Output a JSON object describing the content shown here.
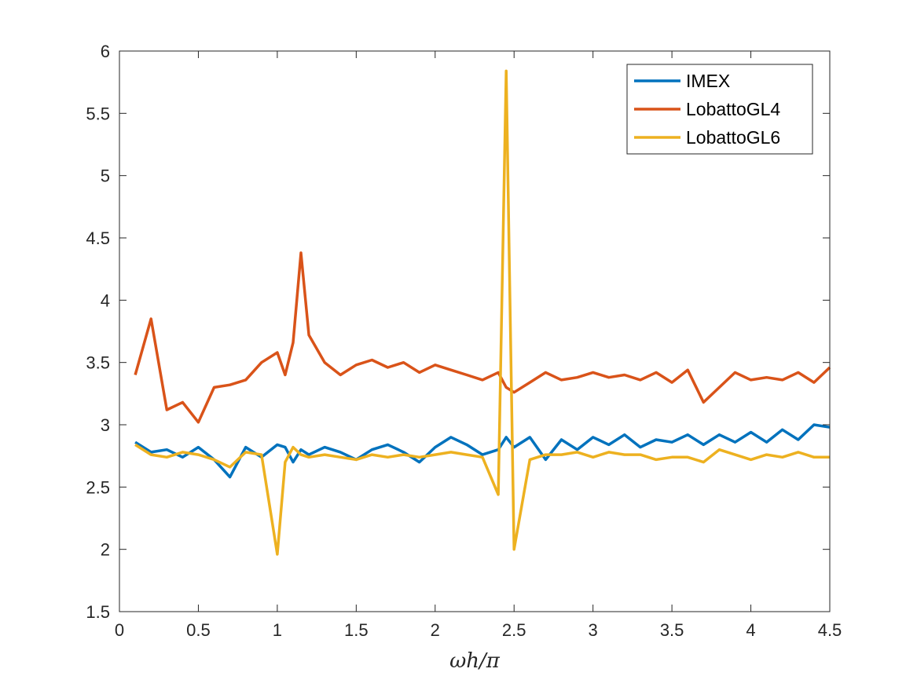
{
  "chart_data": {
    "type": "line",
    "title": "",
    "xlabel": "ωh/π",
    "ylabel": "",
    "xlim": [
      0,
      4.5
    ],
    "ylim": [
      1.5,
      6
    ],
    "xticks": [
      0,
      0.5,
      1,
      1.5,
      2,
      2.5,
      3,
      3.5,
      4,
      4.5
    ],
    "xtick_labels": [
      "0",
      "0.5",
      "1",
      "1.5",
      "2",
      "2.5",
      "3",
      "3.5",
      "4",
      "4.5"
    ],
    "yticks": [
      1.5,
      2,
      2.5,
      3,
      3.5,
      4,
      4.5,
      5,
      5.5,
      6
    ],
    "ytick_labels": [
      "1.5",
      "2",
      "2.5",
      "3",
      "3.5",
      "4",
      "4.5",
      "5",
      "5.5",
      "6"
    ],
    "grid": false,
    "legend_position": "top-right",
    "x": [
      0.1,
      0.2,
      0.3,
      0.4,
      0.5,
      0.6,
      0.7,
      0.8,
      0.9,
      1.0,
      1.05,
      1.1,
      1.15,
      1.2,
      1.3,
      1.4,
      1.5,
      1.6,
      1.7,
      1.8,
      1.9,
      2.0,
      2.1,
      2.2,
      2.3,
      2.4,
      2.45,
      2.5,
      2.6,
      2.7,
      2.8,
      2.9,
      3.0,
      3.1,
      3.2,
      3.3,
      3.4,
      3.5,
      3.6,
      3.7,
      3.8,
      3.9,
      4.0,
      4.1,
      4.2,
      4.3,
      4.4,
      4.5
    ],
    "series": [
      {
        "name": "IMEX",
        "color": "#0072BD",
        "values": [
          2.86,
          2.78,
          2.8,
          2.74,
          2.82,
          2.72,
          2.58,
          2.82,
          2.74,
          2.84,
          2.82,
          2.7,
          2.8,
          2.76,
          2.82,
          2.78,
          2.72,
          2.8,
          2.84,
          2.78,
          2.7,
          2.82,
          2.9,
          2.84,
          2.76,
          2.8,
          2.9,
          2.82,
          2.9,
          2.72,
          2.88,
          2.8,
          2.9,
          2.84,
          2.92,
          2.82,
          2.88,
          2.86,
          2.92,
          2.84,
          2.92,
          2.86,
          2.94,
          2.86,
          2.96,
          2.88,
          3.0,
          2.98
        ]
      },
      {
        "name": "LobattoGL4",
        "color": "#D95319",
        "values": [
          3.4,
          3.85,
          3.12,
          3.18,
          3.02,
          3.3,
          3.32,
          3.36,
          3.5,
          3.58,
          3.4,
          3.66,
          4.38,
          3.72,
          3.5,
          3.4,
          3.48,
          3.52,
          3.46,
          3.5,
          3.42,
          3.48,
          3.44,
          3.4,
          3.36,
          3.42,
          3.3,
          3.26,
          3.34,
          3.42,
          3.36,
          3.38,
          3.42,
          3.38,
          3.4,
          3.36,
          3.42,
          3.34,
          3.44,
          3.18,
          3.3,
          3.42,
          3.36,
          3.38,
          3.36,
          3.42,
          3.34,
          3.46
        ]
      },
      {
        "name": "LobattoGL6",
        "color": "#EDB120",
        "values": [
          2.84,
          2.76,
          2.74,
          2.78,
          2.76,
          2.72,
          2.66,
          2.78,
          2.76,
          1.96,
          2.7,
          2.82,
          2.76,
          2.74,
          2.76,
          2.74,
          2.72,
          2.76,
          2.74,
          2.76,
          2.74,
          2.76,
          2.78,
          2.76,
          2.74,
          2.44,
          5.84,
          2.0,
          2.72,
          2.76,
          2.76,
          2.78,
          2.74,
          2.78,
          2.76,
          2.76,
          2.72,
          2.74,
          2.74,
          2.7,
          2.8,
          2.76,
          2.72,
          2.76,
          2.74,
          2.78,
          2.74,
          2.74
        ]
      }
    ]
  }
}
